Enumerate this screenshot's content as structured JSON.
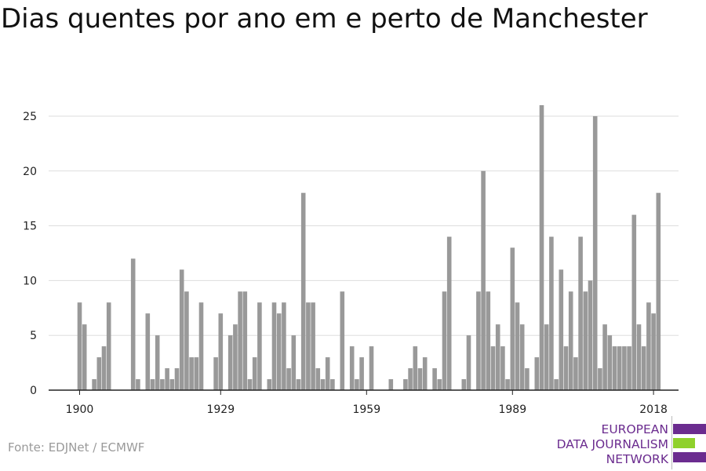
{
  "title": "Dias quentes por ano em e perto de Manchester",
  "source": "Fonte: EDJNet / ECMWF",
  "logo": {
    "lines": [
      "EUROPEAN",
      "DATA JOURNALISM",
      "NETWORK"
    ],
    "colors": {
      "purple": "#6b2c8f",
      "green": "#8fd12c"
    }
  },
  "chart_data": {
    "type": "bar",
    "title": "Dias quentes por ano em e perto de Manchester",
    "xlabel": "",
    "ylabel": "",
    "bar_color": "#999999",
    "grid": true,
    "x_start": 1900,
    "x_end": 2019,
    "xticks": [
      1900,
      1929,
      1959,
      1989,
      2018
    ],
    "yticks": [
      0,
      5,
      10,
      15,
      20,
      25
    ],
    "ylim": [
      0,
      26
    ],
    "years": [
      1900,
      1901,
      1902,
      1903,
      1904,
      1905,
      1906,
      1907,
      1908,
      1909,
      1910,
      1911,
      1912,
      1913,
      1914,
      1915,
      1916,
      1917,
      1918,
      1919,
      1920,
      1921,
      1922,
      1923,
      1924,
      1925,
      1926,
      1927,
      1928,
      1929,
      1930,
      1931,
      1932,
      1933,
      1934,
      1935,
      1936,
      1937,
      1938,
      1939,
      1940,
      1941,
      1942,
      1943,
      1944,
      1945,
      1946,
      1947,
      1948,
      1949,
      1950,
      1951,
      1952,
      1953,
      1954,
      1955,
      1956,
      1957,
      1958,
      1959,
      1960,
      1961,
      1962,
      1963,
      1964,
      1965,
      1966,
      1967,
      1968,
      1969,
      1970,
      1971,
      1972,
      1973,
      1974,
      1975,
      1976,
      1977,
      1978,
      1979,
      1980,
      1981,
      1982,
      1983,
      1984,
      1985,
      1986,
      1987,
      1988,
      1989,
      1990,
      1991,
      1992,
      1993,
      1994,
      1995,
      1996,
      1997,
      1998,
      1999,
      2000,
      2001,
      2002,
      2003,
      2004,
      2005,
      2006,
      2007,
      2008,
      2009,
      2010,
      2011,
      2012,
      2013,
      2014,
      2015,
      2016,
      2017,
      2018,
      2019
    ],
    "values": [
      8,
      6,
      0,
      1,
      3,
      4,
      8,
      0,
      0,
      0,
      0,
      12,
      1,
      0,
      7,
      1,
      5,
      1,
      2,
      1,
      2,
      11,
      9,
      3,
      3,
      8,
      0,
      0,
      3,
      7,
      0,
      5,
      6,
      9,
      9,
      1,
      3,
      8,
      0,
      1,
      8,
      7,
      8,
      2,
      5,
      1,
      18,
      8,
      8,
      2,
      1,
      3,
      1,
      0,
      9,
      0,
      4,
      1,
      3,
      0,
      4,
      0,
      0,
      0,
      1,
      0,
      0,
      1,
      2,
      4,
      2,
      3,
      0,
      2,
      1,
      9,
      14,
      0,
      0,
      1,
      5,
      0,
      9,
      20,
      9,
      4,
      6,
      4,
      1,
      13,
      8,
      6,
      2,
      0,
      3,
      26,
      6,
      14,
      1,
      11,
      4,
      9,
      3,
      14,
      9,
      10,
      25,
      2,
      6,
      5,
      4,
      4,
      4,
      4,
      16,
      6,
      4,
      8,
      7,
      18
    ]
  }
}
